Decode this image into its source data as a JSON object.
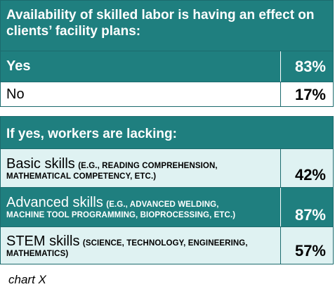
{
  "chart_data": {
    "type": "table",
    "section1": {
      "title": "Availability of skilled labor is having an effect on clients’ facility plans:",
      "rows": [
        {
          "label": "Yes",
          "value": "83%"
        },
        {
          "label": "No",
          "value": "17%"
        }
      ]
    },
    "section2": {
      "title": "If yes, workers are lacking:",
      "rows": [
        {
          "label": "Basic skills",
          "detail_1": "(E.G., READING COMPREHENSION,",
          "detail_2": "MATHEMATICAL COMPETENCY, ETC.)",
          "value": "42%"
        },
        {
          "label": "Advanced skills",
          "detail_1": "(E.G., ADVANCED WELDING,",
          "detail_2": "MACHINE TOOL PROGRAMMING, BIOPROCESSING, ETC.)",
          "value": "87%"
        },
        {
          "label": "STEM skills",
          "detail_1": "(SCIENCE, TECHNOLOGY, ENGINEERING,",
          "detail_2": "MATHEMATICS)",
          "value": "57%"
        }
      ]
    },
    "caption": "chart X"
  },
  "colors": {
    "header_teal": "#1f7f7f",
    "row_pale": "#dff2f2",
    "border": "#1c6b6e"
  }
}
